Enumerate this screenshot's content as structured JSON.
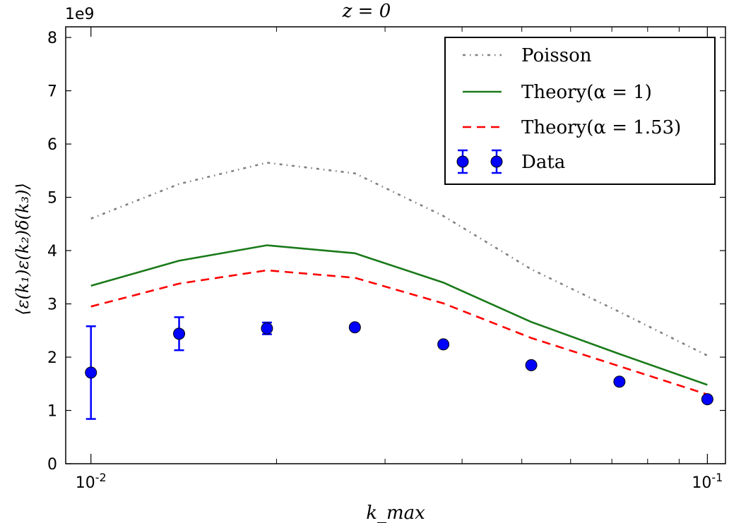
{
  "chart_data": {
    "type": "line",
    "title": "z = 0",
    "xlabel": "k_max",
    "ylabel": "⟨ε(k₁)ε(k₂)δ(k₃)⟩",
    "y_offset_label": "1e9",
    "xscale": "log",
    "xlim": [
      0.0091,
      0.107
    ],
    "ylim": [
      0,
      8.2
    ],
    "y_unit_scale": 1000000000,
    "x_ticks": [
      {
        "value": 0.01,
        "base": "10",
        "exp": "-2"
      },
      {
        "value": 0.1,
        "base": "10",
        "exp": "-1"
      }
    ],
    "x_minor_ticks": [
      0.02,
      0.03,
      0.04,
      0.05,
      0.06,
      0.07,
      0.08,
      0.09
    ],
    "y_ticks": [
      0,
      1,
      2,
      3,
      4,
      5,
      6,
      7,
      8
    ],
    "y_tick_labels": [
      "0",
      "1",
      "2",
      "3",
      "4",
      "5",
      "6",
      "7",
      "8"
    ],
    "x": [
      0.01,
      0.0139,
      0.0193,
      0.0268,
      0.0373,
      0.0518,
      0.072,
      0.1
    ],
    "series": [
      {
        "name": "Poisson",
        "color": "#808080",
        "style": "dashdot",
        "values": [
          4.6,
          5.25,
          5.65,
          5.45,
          4.65,
          3.65,
          2.85,
          2.03
        ]
      },
      {
        "name": "Theory(α = 1)",
        "color": "#1a7a1a",
        "style": "solid",
        "values": [
          3.34,
          3.81,
          4.1,
          3.95,
          3.4,
          2.66,
          2.06,
          1.48
        ]
      },
      {
        "name": "Theory(α = 1.53)",
        "color": "#ff0000",
        "style": "dashed",
        "values": [
          2.95,
          3.38,
          3.63,
          3.49,
          3.01,
          2.36,
          1.83,
          1.3
        ]
      },
      {
        "name": "Data",
        "color": "#0000ff",
        "style": "errorbar",
        "values": [
          1.71,
          2.44,
          2.54,
          2.56,
          2.24,
          1.85,
          1.54,
          1.21
        ],
        "errors": [
          0.87,
          0.31,
          0.11,
          0.05,
          0.04,
          0.03,
          0.03,
          0.03
        ]
      }
    ],
    "legend": {
      "position": "top-right"
    },
    "grid": false
  }
}
